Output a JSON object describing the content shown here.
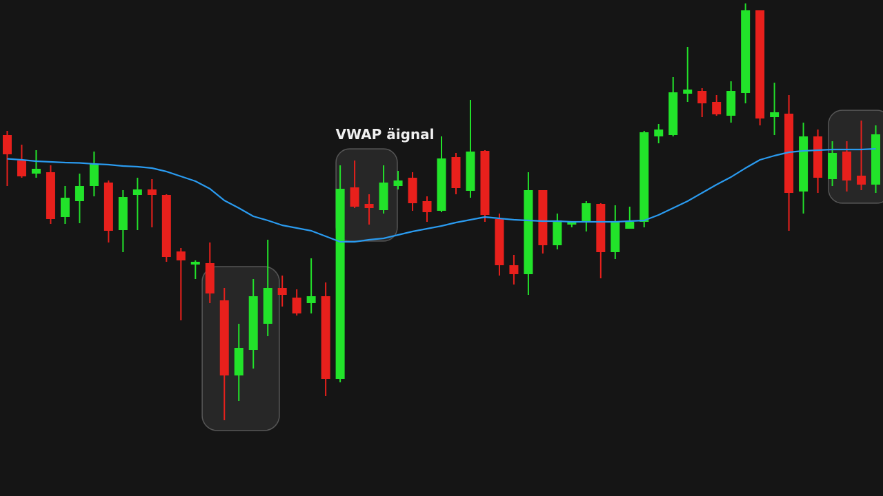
{
  "chart_data": {
    "type": "candlestick",
    "annotation": "VWAP äignal",
    "background": "#151515",
    "categories": [
      null,
      null,
      null,
      null,
      null,
      null,
      null,
      null,
      null,
      null,
      null,
      null,
      null,
      null,
      null,
      null,
      null,
      null,
      null,
      null,
      null,
      null,
      null,
      null,
      null,
      null,
      null,
      null,
      null,
      null,
      null,
      null,
      null,
      null,
      null,
      null,
      null,
      null,
      null,
      null,
      null,
      null,
      null,
      null,
      null,
      null,
      null,
      null,
      null,
      null,
      null,
      null,
      null,
      null,
      null,
      null,
      null,
      null,
      null,
      null,
      null
    ],
    "ylim": [
      0,
      720
    ],
    "up_color": "#22e32a",
    "down_color": "#e8201c",
    "open": [
      524,
      487,
      468,
      470,
      405,
      428,
      450,
      455,
      386,
      437,
      445,
      437,
      355,
      336,
      338,
      284,
      175,
      212,
      250,
      302,
      288,
      280,
      290,
      170,
      448,
      424,
      415,
      450,
      462,
      428,
      414,
      492,
      443,
      501,
      402,
      335,
      322,
      444,
      364,
      394,
      398,
      424,
      354,
      388,
      398,
      522,
      524,
      584,
      588,
      572,
      552,
      585,
      705,
      550,
      555,
      442,
      522,
      460,
      500,
      465,
      452
    ],
    "high": [
      530,
      510,
      502,
      480,
      450,
      468,
      500,
      458,
      444,
      462,
      460,
      438,
      360,
      342,
      368,
      302,
      250,
      315,
      372,
      320,
      300,
      345,
      310,
      480,
      487,
      438,
      480,
      472,
      470,
      435,
      522,
      498,
      575,
      502,
      410,
      350,
      470,
      444,
      410,
      398,
      428,
      425,
      422,
      420,
      530,
      540,
      608,
      652,
      592,
      582,
      602,
      715,
      705,
      600,
      582,
      542,
      532,
      515,
      515,
      545,
      538
    ],
    "low": [
      450,
      462,
      462,
      395,
      395,
      396,
      435,
      368,
      354,
      386,
      390,
      340,
      255,
      315,
      280,
      110,
      138,
      185,
      232,
      275,
      262,
      265,
      145,
      165,
      418,
      394,
      410,
      445,
      414,
      398,
      412,
      438,
      433,
      398,
      320,
      307,
      292,
      352,
      358,
      390,
      384,
      316,
      344,
      388,
      390,
      512,
      522,
      572,
      550,
      552,
      542,
      570,
      538,
      524,
      385,
      410,
      440,
      450,
      442,
      444,
      440
    ],
    "close": [
      496,
      464,
      475,
      402,
      433,
      450,
      482,
      385,
      434,
      445,
      437,
      347,
      342,
      340,
      294,
      175,
      215,
      290,
      302,
      292,
      265,
      290,
      170,
      446,
      420,
      418,
      455,
      458,
      425,
      412,
      490,
      447,
      500,
      408,
      335,
      322,
      444,
      364,
      400,
      398,
      425,
      354,
      398,
      398,
      528,
      532,
      586,
      590,
      570,
      554,
      588,
      705,
      548,
      557,
      440,
      522,
      462,
      498,
      458,
      452,
      525
    ],
    "vwap": {
      "type": "line",
      "color": "#2a9bf0",
      "values": [
        489.5,
        488,
        486,
        485,
        484,
        483.5,
        482,
        481,
        479,
        478,
        476,
        471,
        464,
        457,
        446,
        429,
        418,
        406,
        400,
        393,
        389,
        385,
        377,
        369,
        369,
        372,
        374,
        379,
        384,
        388,
        392,
        397,
        401,
        405,
        403,
        401,
        400,
        399,
        399,
        398,
        398,
        398,
        398,
        399,
        400,
        408,
        418,
        428,
        440,
        452,
        463,
        476,
        488,
        494,
        499,
        501,
        502,
        503,
        503,
        503,
        504
      ]
    }
  }
}
